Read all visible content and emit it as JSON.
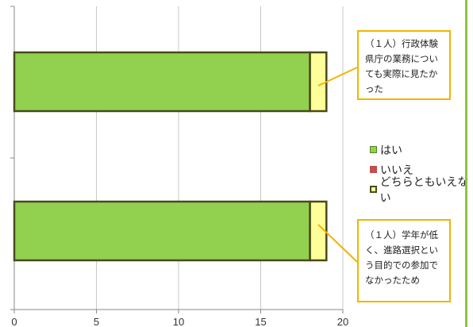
{
  "chart_data": {
    "type": "bar",
    "orientation": "horizontal",
    "stacked": true,
    "categories": [
      "",
      ""
    ],
    "series": [
      {
        "name": "はい",
        "values": [
          18,
          18
        ],
        "color": "#92d050"
      },
      {
        "name": "いいえ",
        "values": [
          0,
          0
        ],
        "color": "#c0504d"
      },
      {
        "name": "どちらともいえない",
        "values": [
          1,
          1
        ],
        "color": "#ffff99"
      }
    ],
    "xlim": [
      0,
      20
    ],
    "xticks": [
      0,
      5,
      10,
      15,
      20
    ],
    "grid": true,
    "legend_position": "right",
    "annotations": [
      {
        "text": "（１人）行政体験\n県庁の業務についても実際に見たかった",
        "target_category": 0
      },
      {
        "text": "（１人）学年が低く、進路選択という目的での参加でなかったため",
        "target_category": 1
      }
    ]
  },
  "colors": {
    "bar_border": "#4a4a1c",
    "callout_border": "#f2b400",
    "accent_rule": "#8cc63f"
  }
}
